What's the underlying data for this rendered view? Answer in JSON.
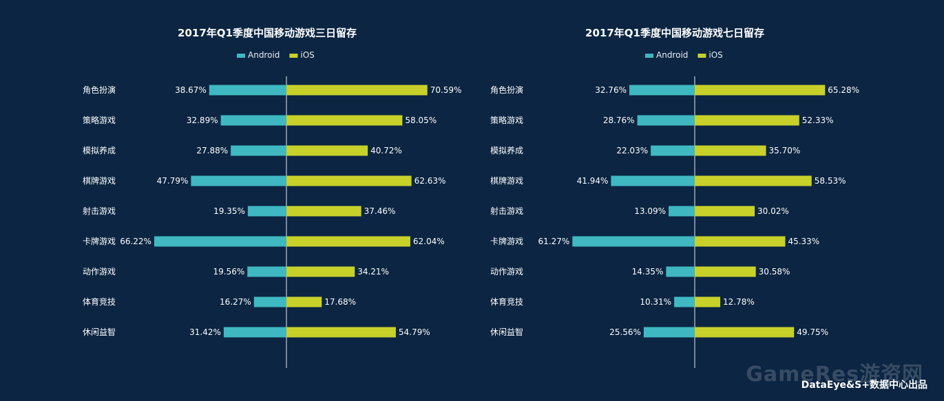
{
  "colors": {
    "background": "#0b2542",
    "android": "#3fb8c2",
    "ios": "#c8d12a",
    "axis": "#e8eef5"
  },
  "chart_data": [
    {
      "type": "bar",
      "orientation": "horizontal-diverging",
      "title": "2017年Q1季度中国移动游戏三日留存",
      "legend": [
        "Android",
        "iOS"
      ],
      "legend_position": "top-center",
      "categories": [
        "角色扮演",
        "策略游戏",
        "模拟养成",
        "棋牌游戏",
        "射击游戏",
        "卡牌游戏",
        "动作游戏",
        "体育竞技",
        "休闲益智"
      ],
      "series": [
        {
          "name": "Android",
          "values": [
            38.67,
            32.89,
            27.88,
            47.79,
            19.35,
            66.22,
            19.56,
            16.27,
            31.42
          ],
          "labels": [
            "38.67%",
            "32.89%",
            "27.88%",
            "47.79%",
            "19.35%",
            "66.22%",
            "19.56%",
            "16.27%",
            "31.42%"
          ]
        },
        {
          "name": "iOS",
          "values": [
            70.59,
            58.05,
            40.72,
            62.63,
            37.46,
            62.04,
            34.21,
            17.68,
            54.79
          ],
          "labels": [
            "70.59%",
            "58.05%",
            "40.72%",
            "62.63%",
            "37.46%",
            "62.04%",
            "34.21%",
            "17.68%",
            "54.79%"
          ]
        }
      ],
      "grid": false
    },
    {
      "type": "bar",
      "orientation": "horizontal-diverging",
      "title": "2017年Q1季度中国移动游戏七日留存",
      "legend": [
        "Android",
        "iOS"
      ],
      "legend_position": "top-center",
      "categories": [
        "角色扮演",
        "策略游戏",
        "模拟养成",
        "棋牌游戏",
        "射击游戏",
        "卡牌游戏",
        "动作游戏",
        "体育竞技",
        "休闲益智"
      ],
      "series": [
        {
          "name": "Android",
          "values": [
            32.76,
            28.76,
            22.03,
            41.94,
            13.09,
            61.27,
            14.35,
            10.31,
            25.56
          ],
          "labels": [
            "32.76%",
            "28.76%",
            "22.03%",
            "41.94%",
            "13.09%",
            "61.27%",
            "14.35%",
            "10.31%",
            "25.56%"
          ]
        },
        {
          "name": "iOS",
          "values": [
            65.28,
            52.33,
            35.7,
            58.53,
            30.02,
            45.33,
            30.58,
            12.78,
            49.75
          ],
          "labels": [
            "65.28%",
            "52.33%",
            "35.70%",
            "58.53%",
            "30.02%",
            "45.33%",
            "30.58%",
            "12.78%",
            "49.75%"
          ]
        }
      ],
      "grid": false
    }
  ],
  "footer": {
    "credit": "DataEye&S+数据中心出品",
    "watermark": "GameRes游资网"
  }
}
